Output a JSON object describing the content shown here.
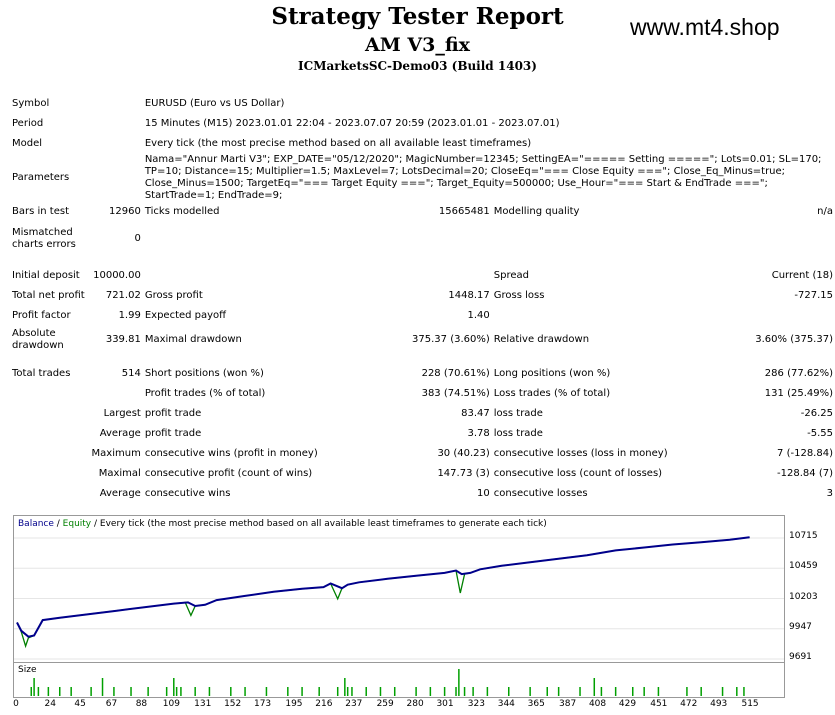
{
  "header": {
    "title": "Strategy Tester Report",
    "subtitle": "AM V3_fix",
    "server": "ICMarketsSC-Demo03 (Build 1403)",
    "site": "www.mt4.shop"
  },
  "report": {
    "symbol_label": "Symbol",
    "symbol_value": "EURUSD (Euro vs US Dollar)",
    "period_label": "Period",
    "period_value": "15 Minutes (M15) 2023.01.01 22:04 - 2023.07.07 20:59 (2023.01.01 - 2023.07.01)",
    "model_label": "Model",
    "model_value": "Every tick (the most precise method based on all available least timeframes)",
    "parameters_label": "Parameters",
    "parameters_value": "Nama=\"Annur Marti V3\"; EXP_DATE=\"05/12/2020\"; MagicNumber=12345; SettingEA=\"===== Setting =====\"; Lots=0.01; SL=170; TP=10; Distance=15; Multiplier=1.5; MaxLevel=7; LotsDecimal=20; CloseEq=\"=== Close Equity ===\"; Close_Eq_Minus=true; Close_Minus=1500; TargetEq=\"=== Target Equity ===\"; Target_Equity=500000; Use_Hour=\"=== Start & EndTrade ===\"; StartTrade=1; EndTrade=9;",
    "bars_label": "Bars in test",
    "bars_value": "12960",
    "ticks_label": "Ticks modelled",
    "ticks_value": "15665481",
    "quality_label": "Modelling quality",
    "quality_value": "n/a",
    "mismatch_label": "Mismatched charts errors",
    "mismatch_value": "0",
    "deposit_label": "Initial deposit",
    "deposit_value": "10000.00",
    "spread_label": "Spread",
    "spread_value": "Current (18)",
    "netprofit_label": "Total net profit",
    "netprofit_value": "721.02",
    "grossprofit_label": "Gross profit",
    "grossprofit_value": "1448.17",
    "grossloss_label": "Gross loss",
    "grossloss_value": "-727.15",
    "pf_label": "Profit factor",
    "pf_value": "1.99",
    "payoff_label": "Expected payoff",
    "payoff_value": "1.40",
    "absdd_label": "Absolute drawdown",
    "absdd_value": "339.81",
    "maxdd_label": "Maximal drawdown",
    "maxdd_value": "375.37 (3.60%)",
    "reldd_label": "Relative drawdown",
    "reldd_value": "3.60% (375.37)",
    "trades_label": "Total trades",
    "trades_value": "514",
    "short_label": "Short positions (won %)",
    "short_value": "228 (70.61%)",
    "long_label": "Long positions (won %)",
    "long_value": "286 (77.62%)",
    "profittrades_label": "Profit trades (% of total)",
    "profittrades_value": "383 (74.51%)",
    "losstrades_label": "Loss trades (% of total)",
    "losstrades_value": "131 (25.49%)",
    "largest_label": "Largest",
    "lp_label": "profit trade",
    "lp_value": "83.47",
    "ll_label": "loss trade",
    "ll_value": "-26.25",
    "average_label": "Average",
    "ap_label": "profit trade",
    "ap_value": "3.78",
    "al_label": "loss trade",
    "al_value": "-5.55",
    "maximum_label": "Maximum",
    "mcw_label": "consecutive wins (profit in money)",
    "mcw_value": "30 (40.23)",
    "mcl_label": "consecutive losses (loss in money)",
    "mcl_value": "7 (-128.84)",
    "maximal_label": "Maximal",
    "mcp_label": "consecutive profit (count of wins)",
    "mcp_value": "147.73 (3)",
    "mcloss_label": "consecutive loss (count of losses)",
    "mcloss_value": "-128.84 (7)",
    "average2_label": "Average",
    "acw_label": "consecutive wins",
    "acw_value": "10",
    "acl_label": "consecutive losses",
    "acl_value": "3"
  },
  "chart": {
    "legend_balance": "Balance",
    "legend_sep1": " / ",
    "legend_equity": "Equity",
    "legend_rest": " / Every tick (the most precise method based on all available least timeframes to generate each tick)",
    "size_label": "Size",
    "balance_color": "#00008B",
    "equity_color": "#008000",
    "size_color": "#00A000"
  },
  "chart_data": {
    "type": "line",
    "title": "",
    "xlabel": "",
    "ylabel": "",
    "ylim": [
      9691,
      10800
    ],
    "xlim": [
      0,
      536
    ],
    "x_ticks": [
      0,
      24,
      45,
      67,
      88,
      109,
      131,
      152,
      173,
      195,
      216,
      237,
      259,
      280,
      301,
      323,
      344,
      365,
      387,
      408,
      429,
      451,
      472,
      493,
      515
    ],
    "y_ticks": [
      10715,
      10459,
      10203,
      9947,
      9691
    ],
    "series": [
      {
        "name": "Balance",
        "x": [
          0,
          3,
          8,
          12,
          18,
          30,
          50,
          70,
          90,
          110,
          120,
          125,
          132,
          140,
          160,
          180,
          200,
          215,
          220,
          228,
          232,
          240,
          260,
          280,
          300,
          308,
          312,
          318,
          325,
          340,
          360,
          380,
          400,
          420,
          440,
          460,
          480,
          500,
          514
        ],
        "y": [
          10000,
          9930,
          9880,
          9890,
          10020,
          10040,
          10070,
          10100,
          10130,
          10160,
          10170,
          10140,
          10150,
          10190,
          10225,
          10260,
          10285,
          10300,
          10330,
          10290,
          10320,
          10340,
          10370,
          10395,
          10420,
          10440,
          10410,
          10420,
          10450,
          10480,
          10510,
          10540,
          10570,
          10610,
          10635,
          10660,
          10680,
          10700,
          10721
        ]
      },
      {
        "name": "Equity",
        "x": [
          0,
          3,
          6,
          8,
          12,
          18,
          30,
          50,
          70,
          90,
          110,
          118,
          122,
          125,
          132,
          140,
          160,
          180,
          200,
          215,
          220,
          225,
          228,
          232,
          240,
          260,
          280,
          300,
          308,
          311,
          314,
          318,
          325,
          340,
          360,
          380,
          400,
          420,
          440,
          460,
          480,
          500,
          514
        ],
        "y": [
          10000,
          9920,
          9800,
          9870,
          9890,
          10020,
          10040,
          10070,
          10100,
          10130,
          10160,
          10170,
          10060,
          10140,
          10150,
          10190,
          10225,
          10260,
          10285,
          10300,
          10330,
          10200,
          10290,
          10320,
          10340,
          10370,
          10395,
          10420,
          10440,
          10250,
          10410,
          10420,
          10450,
          10480,
          10510,
          10540,
          10570,
          10610,
          10635,
          10660,
          10680,
          10700,
          10721
        ]
      }
    ],
    "size_bars": {
      "name": "Size",
      "x": [
        10,
        12,
        15,
        22,
        30,
        38,
        52,
        60,
        68,
        80,
        92,
        105,
        110,
        112,
        115,
        125,
        135,
        150,
        160,
        175,
        190,
        200,
        212,
        225,
        230,
        232,
        235,
        245,
        255,
        265,
        280,
        290,
        300,
        308,
        310,
        314,
        320,
        330,
        345,
        360,
        372,
        380,
        395,
        405,
        410,
        420,
        432,
        440,
        450,
        470,
        480,
        495,
        505,
        510
      ],
      "y": [
        1,
        2,
        1,
        1,
        1,
        1,
        1,
        2,
        1,
        1,
        1,
        1,
        2,
        1,
        1,
        1,
        1,
        1,
        1,
        1,
        1,
        1,
        1,
        1,
        2,
        1,
        1,
        1,
        1,
        1,
        1,
        1,
        1,
        1,
        3,
        1,
        1,
        1,
        1,
        1,
        1,
        1,
        1,
        2,
        1,
        1,
        1,
        1,
        1,
        1,
        1,
        1,
        1,
        1
      ]
    }
  }
}
